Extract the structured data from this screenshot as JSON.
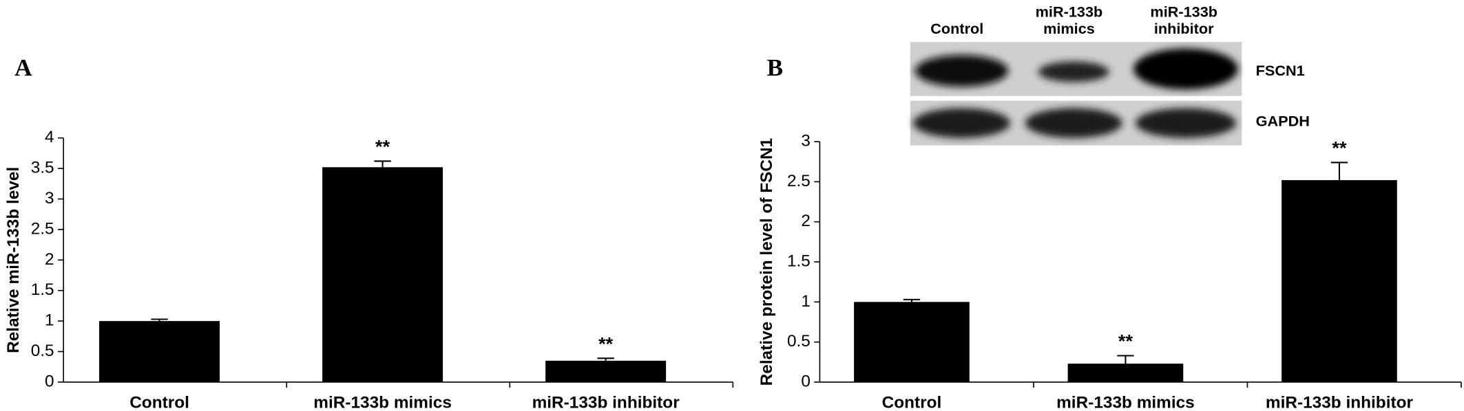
{
  "chart_data": [
    {
      "type": "bar",
      "panel_label": "A",
      "y_label": "Relative miR-133b level",
      "categories": [
        "Control",
        "miR-133b mimics",
        "miR-133b inhibitor"
      ],
      "values": [
        1.0,
        3.52,
        0.35
      ],
      "errors": [
        0.03,
        0.1,
        0.04
      ],
      "annotations": [
        null,
        "**",
        "**"
      ],
      "color": "#000000",
      "ylim": [
        0,
        4
      ],
      "yticks": [
        0,
        0.5,
        1,
        1.5,
        2,
        2.5,
        3,
        3.5,
        4
      ]
    },
    {
      "type": "bar",
      "panel_label": "B",
      "y_label": "Relative protein level of FSCN1",
      "categories": [
        "Control",
        "miR-133b mimics",
        "miR-133b inhibitor"
      ],
      "values": [
        1.0,
        0.23,
        2.52
      ],
      "errors": [
        0.03,
        0.1,
        0.22
      ],
      "annotations": [
        null,
        "**",
        "**"
      ],
      "color": "#000000",
      "ylim": [
        0,
        3
      ],
      "yticks": [
        0,
        0.5,
        1,
        1.5,
        2,
        2.5,
        3
      ],
      "blot": {
        "lanes": [
          [
            "Control"
          ],
          [
            "miR-133b",
            "mimics"
          ],
          [
            "miR-133b",
            "inhibitor"
          ]
        ],
        "bands": [
          "FSCN1",
          "GAPDH"
        ]
      }
    }
  ]
}
